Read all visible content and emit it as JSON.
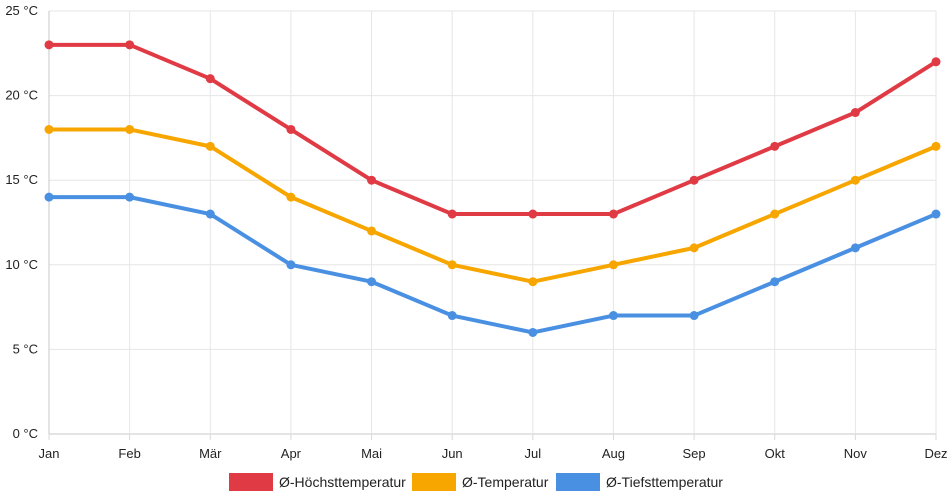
{
  "chart_data": {
    "type": "line",
    "title": "",
    "xlabel": "",
    "ylabel": "",
    "categories": [
      "Jan",
      "Feb",
      "Mär",
      "Apr",
      "Mai",
      "Jun",
      "Jul",
      "Aug",
      "Sep",
      "Okt",
      "Nov",
      "Dez"
    ],
    "y_ticks": [
      "0 °C",
      "5 °C",
      "10 °C",
      "15 °C",
      "20 °C",
      "25 °C"
    ],
    "ylim": [
      0,
      25
    ],
    "y_tick_values": [
      0,
      5,
      10,
      15,
      20,
      25
    ],
    "grid": true,
    "legend_position": "bottom",
    "series": [
      {
        "name": "Ø-Höchsttemperatur",
        "color": "#e03a45",
        "values": [
          23,
          23,
          21,
          18,
          15,
          13,
          13,
          13,
          15,
          17,
          19,
          22
        ]
      },
      {
        "name": "Ø-Temperatur",
        "color": "#f7a600",
        "values": [
          18,
          18,
          17,
          14,
          12,
          10,
          9,
          10,
          11,
          13,
          15,
          17
        ]
      },
      {
        "name": "Ø-Tiefsttemperatur",
        "color": "#4a90e2",
        "values": [
          14,
          14,
          13,
          10,
          9,
          7,
          6,
          7,
          7,
          9,
          11,
          13
        ]
      }
    ]
  }
}
